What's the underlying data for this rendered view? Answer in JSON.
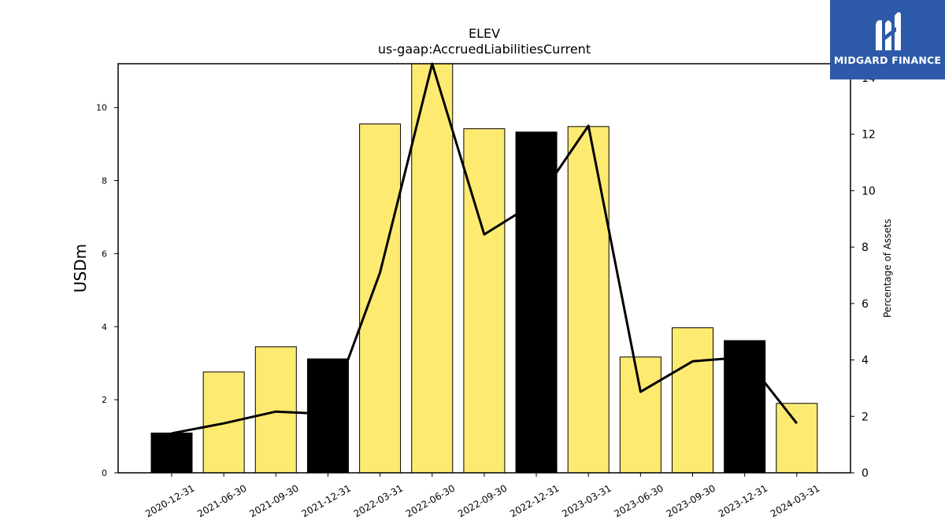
{
  "chart_data": {
    "type": "bar",
    "title": "ELEV",
    "subtitle": "us-gaap:AccruedLiabilitiesCurrent",
    "ylabel": "USDm",
    "y2label": "Percentage of Assets",
    "categories": [
      "2020-12-31",
      "2021-06-30",
      "2021-09-30",
      "2021-12-31",
      "2022-03-31",
      "2022-06-30",
      "2022-09-30",
      "2022-12-31",
      "2023-03-31",
      "2023-06-30",
      "2023-09-30",
      "2023-12-31",
      "2024-03-31"
    ],
    "series": [
      {
        "type": "bar",
        "values": [
          1.09,
          2.76,
          3.45,
          3.12,
          9.55,
          11.25,
          9.42,
          9.33,
          9.48,
          3.17,
          3.97,
          3.62,
          1.9
        ],
        "colors": [
          "#000000",
          "#fdeb71",
          "#fdeb71",
          "#000000",
          "#fdeb71",
          "#fdeb71",
          "#fdeb71",
          "#000000",
          "#fdeb71",
          "#fdeb71",
          "#fdeb71",
          "#000000",
          "#fdeb71"
        ]
      },
      {
        "type": "line",
        "axis": "right",
        "values": [
          1.4,
          1.75,
          2.17,
          2.08,
          7.1,
          14.5,
          8.45,
          9.6,
          12.3,
          2.87,
          3.95,
          4.1,
          1.75
        ]
      }
    ],
    "ylim": [
      0,
      11.2
    ],
    "yticks": [
      0,
      2,
      4,
      6,
      8,
      10
    ],
    "y2lim": [
      0,
      14.5
    ],
    "y2ticks": [
      0,
      2,
      4,
      6,
      8,
      10,
      12,
      14
    ],
    "grid": false,
    "colors": {
      "bar_highlight": "#000000",
      "bar_default": "#fdeb71",
      "line": "#000000"
    }
  },
  "logo": {
    "text": "MIDGARD FINANCE",
    "background": "#2d5aa8"
  }
}
